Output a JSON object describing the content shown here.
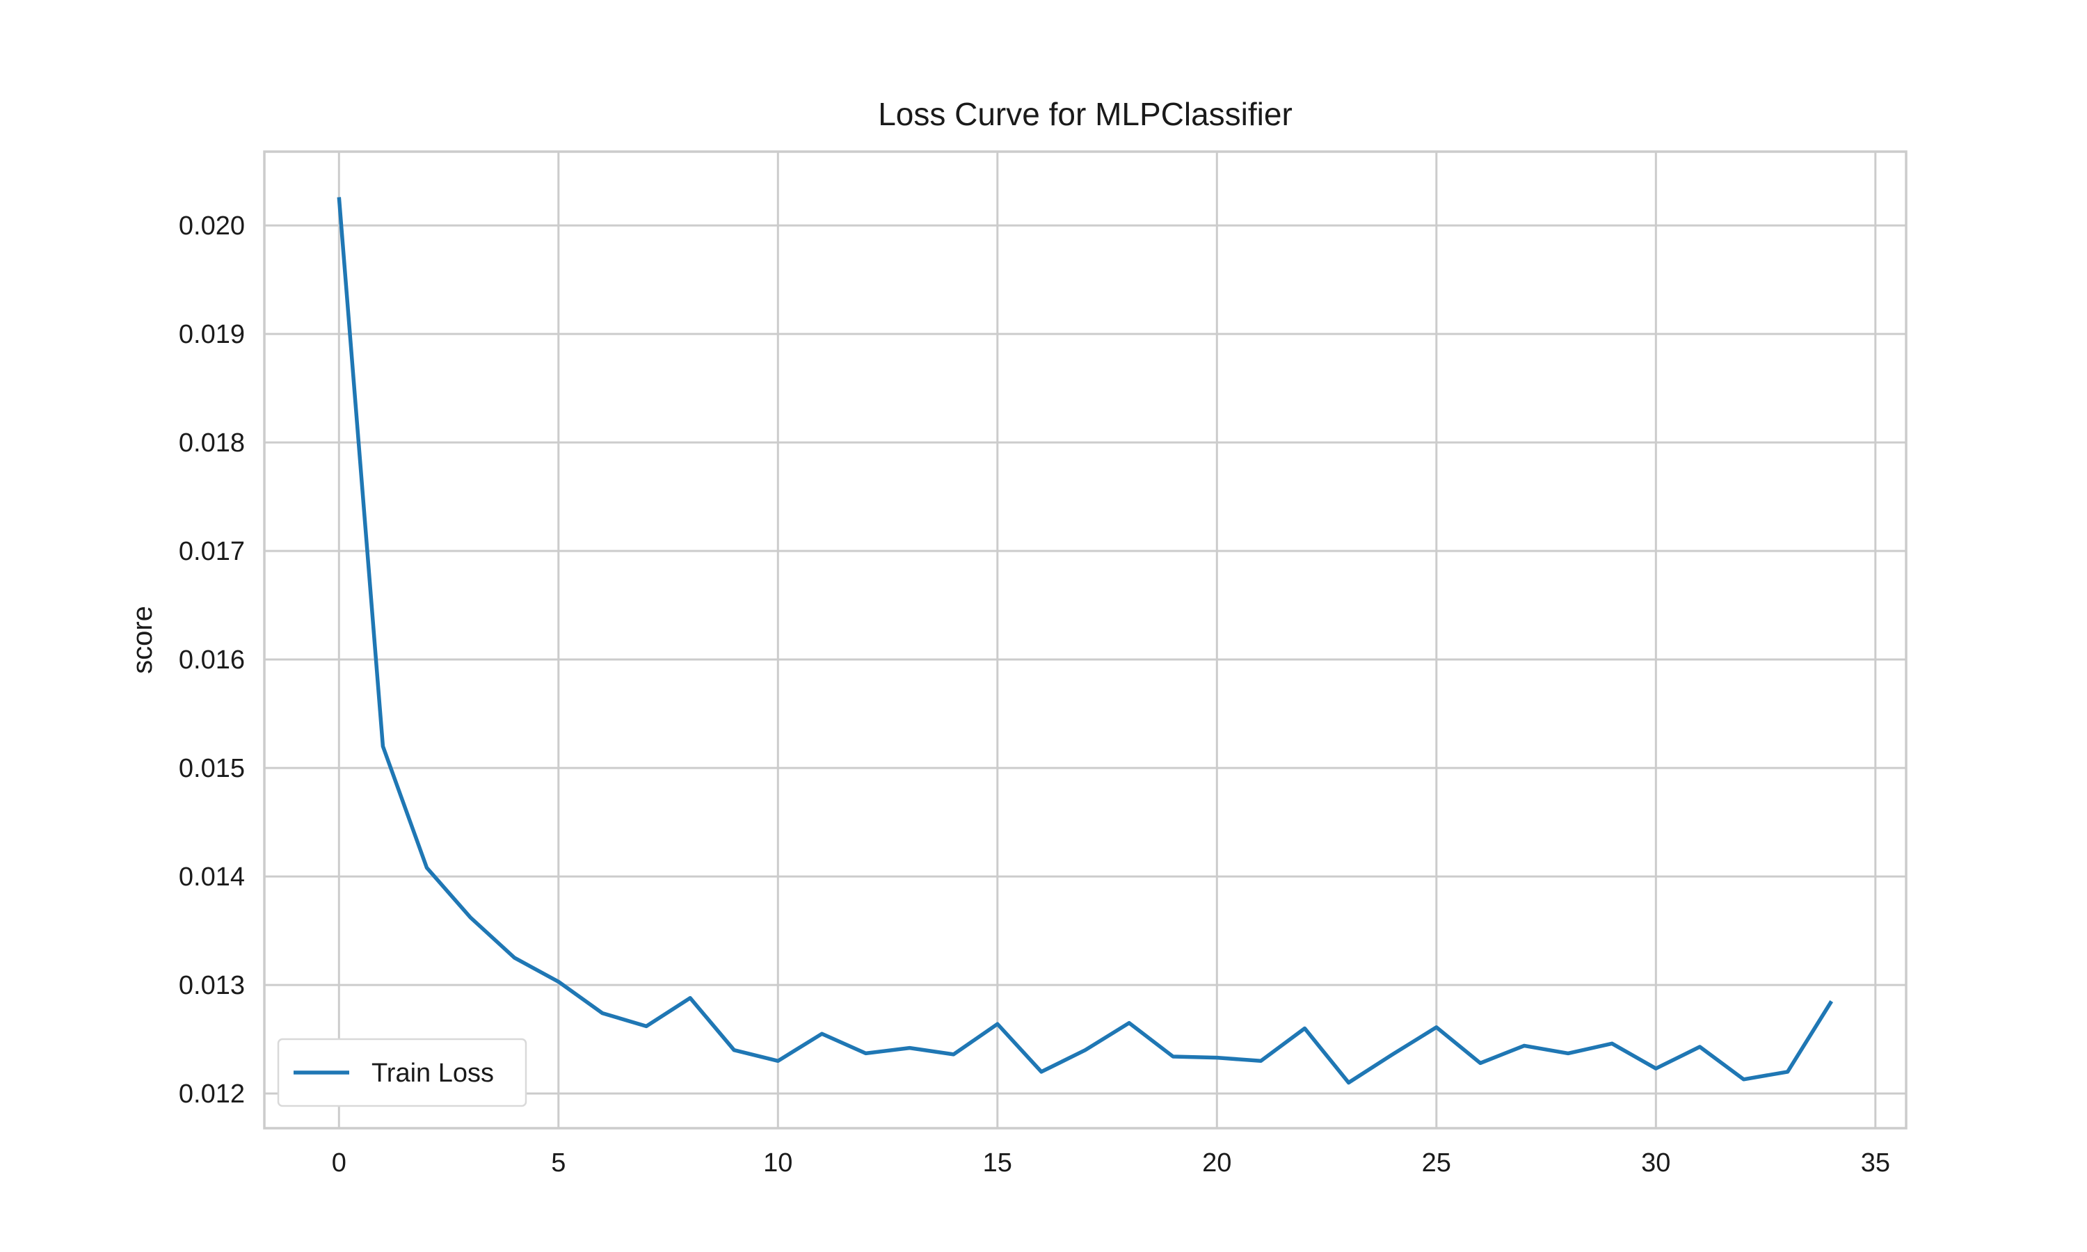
{
  "chart_data": {
    "type": "line",
    "title": "Loss Curve for MLPClassifier",
    "xlabel": "",
    "ylabel": "score",
    "xlim": [
      -1.7,
      35.7
    ],
    "ylim": [
      0.01168,
      0.02068
    ],
    "x_ticks": [
      0,
      5,
      10,
      15,
      20,
      25,
      30,
      35
    ],
    "x_tick_labels": [
      "0",
      "5",
      "10",
      "15",
      "20",
      "25",
      "30",
      "35"
    ],
    "y_ticks": [
      0.012,
      0.013,
      0.014,
      0.015,
      0.016,
      0.017,
      0.018,
      0.019,
      0.02
    ],
    "y_tick_labels": [
      "0.012",
      "0.013",
      "0.014",
      "0.015",
      "0.016",
      "0.017",
      "0.018",
      "0.019",
      "0.020"
    ],
    "grid": true,
    "legend_position": "lower-left",
    "series": [
      {
        "name": "Train Loss",
        "color": "#1f77b4",
        "x": [
          0,
          1,
          2,
          3,
          4,
          5,
          6,
          7,
          8,
          9,
          10,
          11,
          12,
          13,
          14,
          15,
          16,
          17,
          18,
          19,
          20,
          21,
          22,
          23,
          24,
          25,
          26,
          27,
          28,
          29,
          30,
          31,
          32,
          33,
          34
        ],
        "values": [
          0.02026,
          0.0152,
          0.01408,
          0.01362,
          0.01325,
          0.01303,
          0.01274,
          0.01262,
          0.01288,
          0.0124,
          0.0123,
          0.01255,
          0.01237,
          0.01242,
          0.01236,
          0.01264,
          0.0122,
          0.0124,
          0.01265,
          0.01234,
          0.01233,
          0.0123,
          0.0126,
          0.0121,
          0.01236,
          0.01261,
          0.01228,
          0.01244,
          0.01237,
          0.01246,
          0.01223,
          0.01243,
          0.01213,
          0.0122,
          0.01285
        ]
      }
    ]
  }
}
